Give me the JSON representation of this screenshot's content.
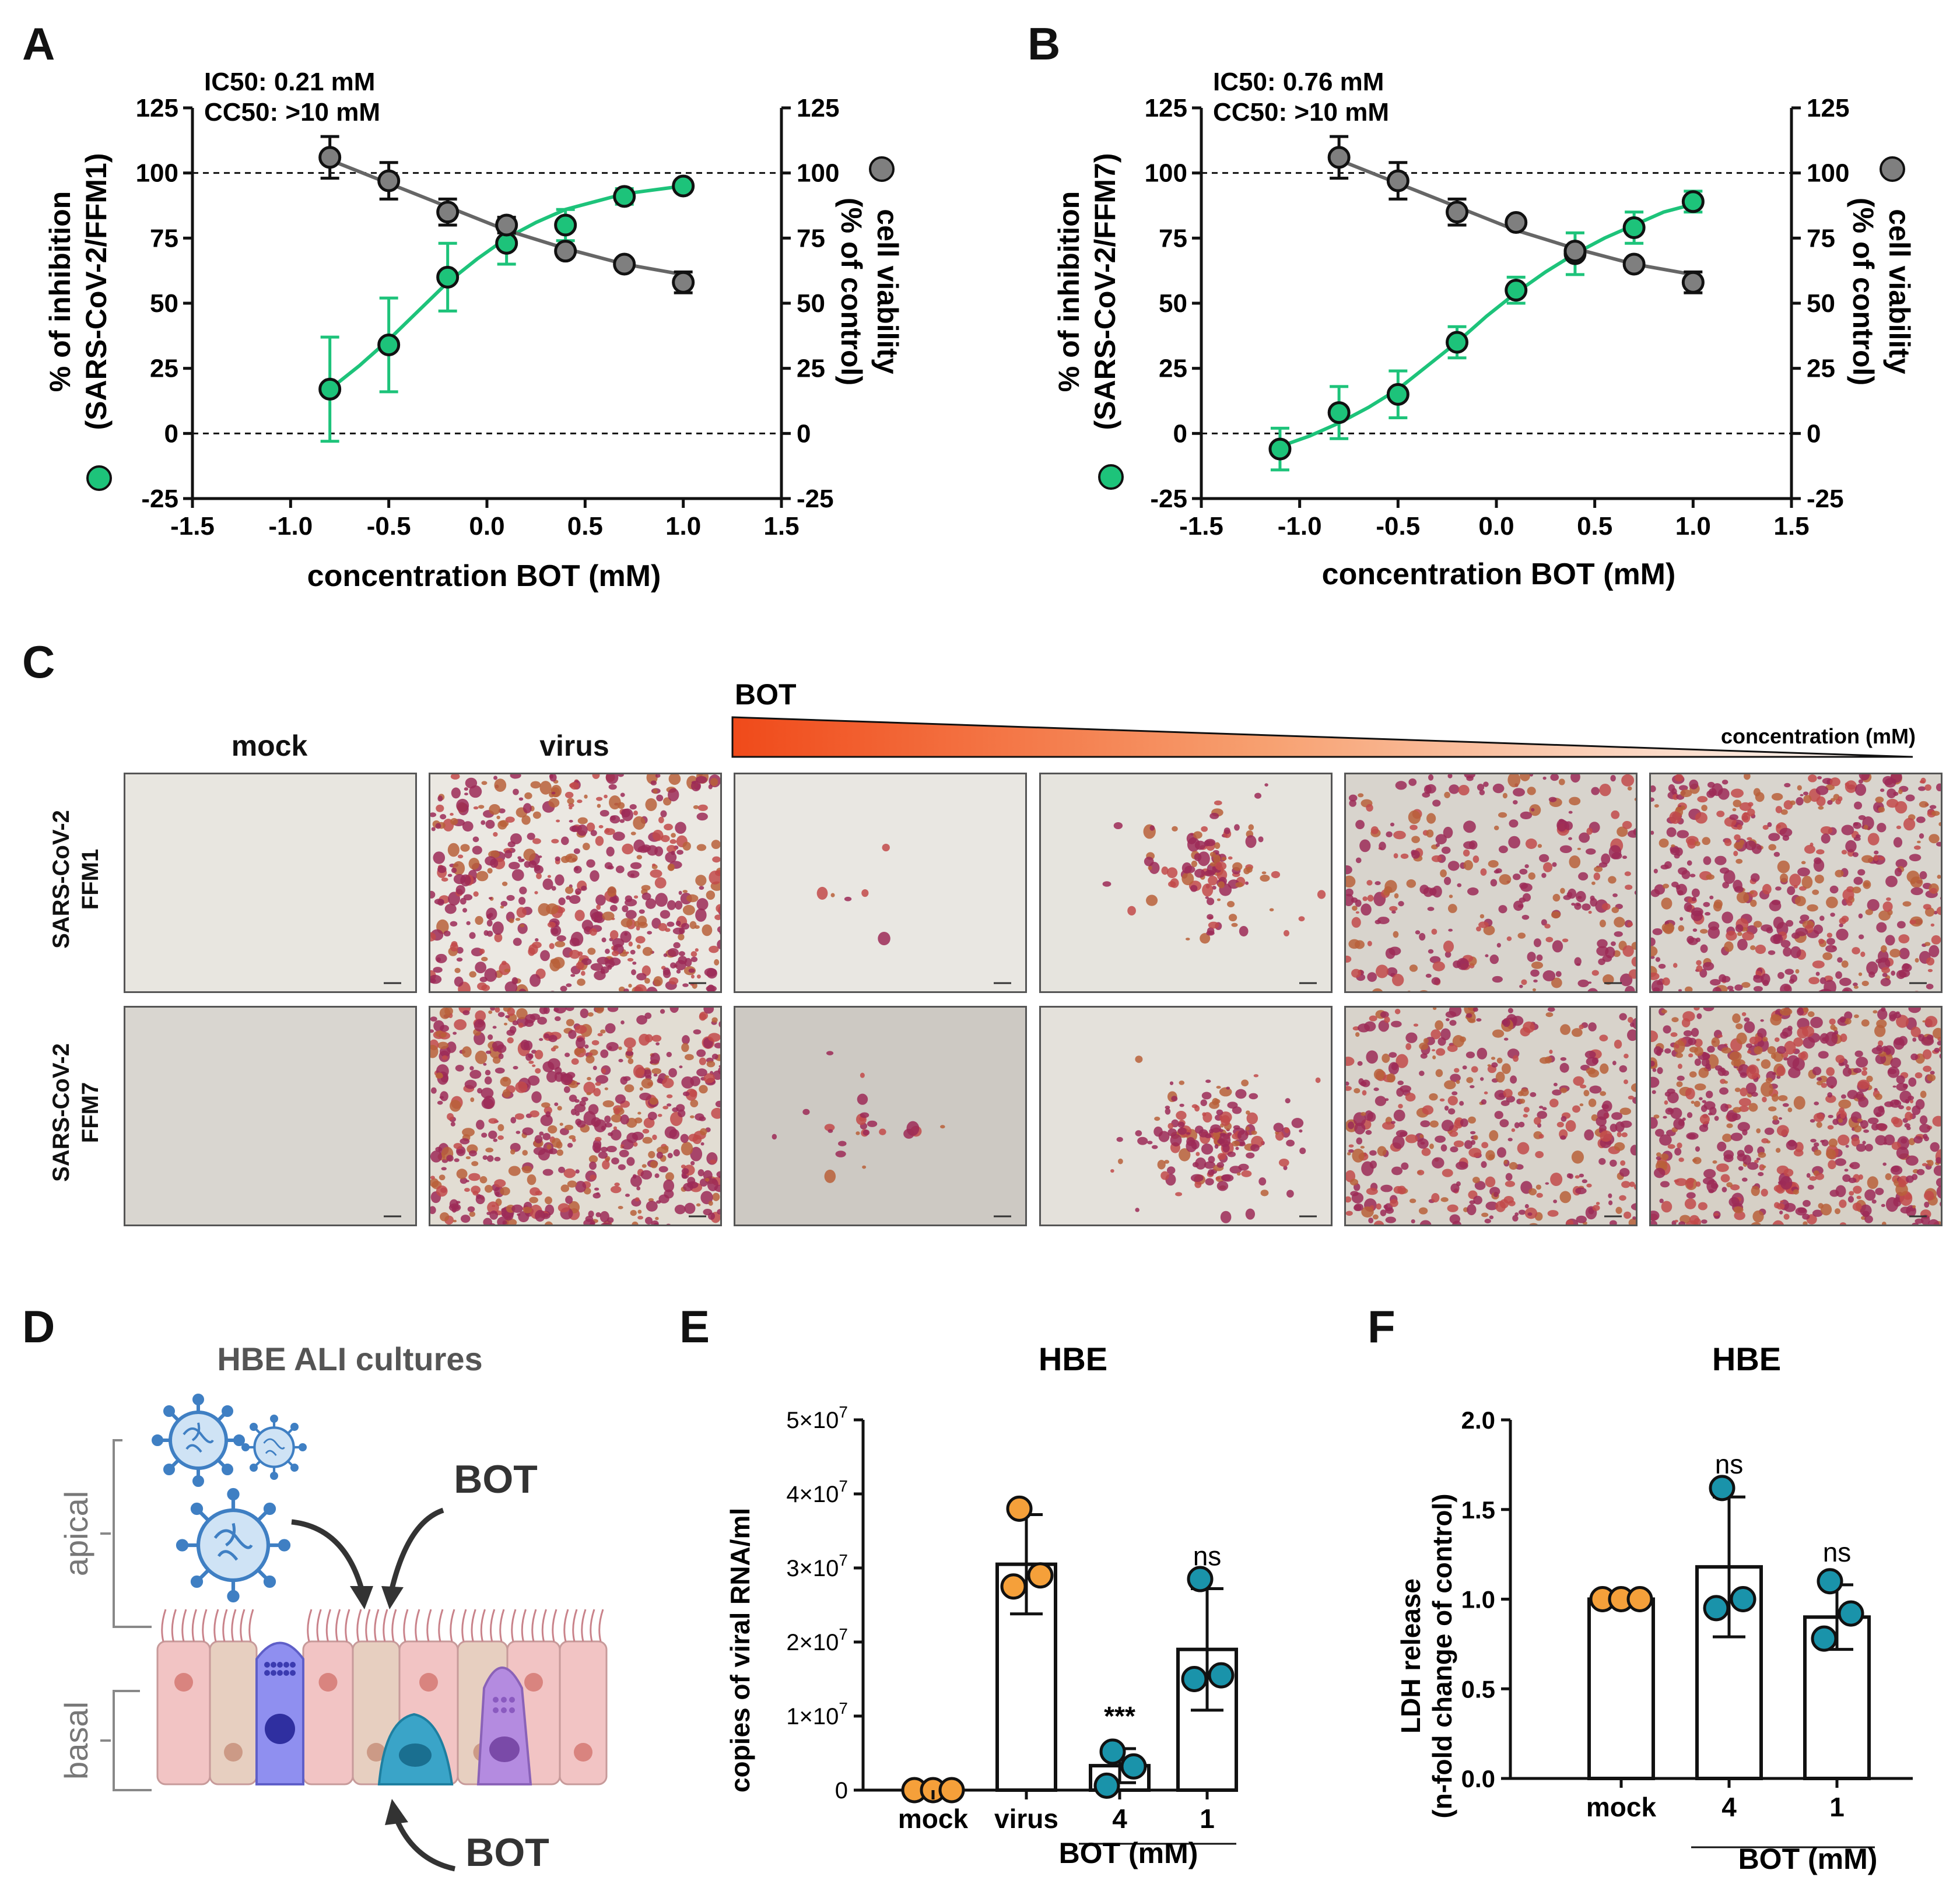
{
  "panels": {
    "A": {
      "label": "A",
      "ic50": "IC50: 0.21 mM",
      "cc50": "CC50: >10 mM",
      "ylabel_left_1": "% of inhibition",
      "ylabel_left_2": "(SARS-CoV-2/FFM1)",
      "ylabel_right_1": "cell viability",
      "ylabel_right_2": "(% of control)",
      "xlabel": "concentration BOT (mM)"
    },
    "B": {
      "label": "B",
      "ic50": "IC50: 0.76 mM",
      "cc50": "CC50: >10 mM",
      "ylabel_left_1": "% of inhibition",
      "ylabel_left_2": "(SARS-CoV-2/FFM7)",
      "ylabel_right_1": "cell viability",
      "ylabel_right_2": "(% of control)",
      "xlabel": "concentration BOT (mM)"
    },
    "C": {
      "label": "C",
      "col_mock": "mock",
      "col_virus": "virus",
      "bot_label": "BOT",
      "concentration_label": "concentration (mM)",
      "row1_line1": "SARS-CoV-2",
      "row1_line2": "FFM1",
      "row2_line1": "SARS-CoV-2",
      "row2_line2": "FFM7"
    },
    "D": {
      "label": "D",
      "title": "HBE ALI cultures",
      "apical": "apical",
      "basal": "basal",
      "bot_top": "BOT",
      "bot_bottom": "BOT"
    },
    "E": {
      "label": "E",
      "title": "HBE",
      "ylabel": "copies of viral RNA/ml",
      "sig_bot4": "***",
      "sig_bot1": "ns",
      "group_label": "BOT (mM)"
    },
    "F": {
      "label": "F",
      "title": "HBE",
      "ylabel_1": "LDH release",
      "ylabel_2": "(n-fold change of control)",
      "sig_bot4": "ns",
      "sig_bot1": "ns",
      "group_label": "BOT (mM)"
    }
  },
  "colors": {
    "inhibition": "#1dc37a",
    "viability": "#7f7f7f",
    "orange_dot": "#f5a03a",
    "teal_dot": "#1a93aa",
    "bot_gradient_start": "#f04a1a",
    "bot_gradient_end": "#ffffff"
  },
  "icons": [
    "virus-particle-icon",
    "airway-epithelium-illustration",
    "arrow-icon"
  ],
  "chart_data": [
    {
      "id": "A",
      "type": "scatter",
      "title": "",
      "xlabel": "concentration BOT (mM)",
      "ylabel": "% of inhibition (SARS-CoV-2/FFM1)",
      "y2label": "cell viability (% of control)",
      "xlim": [
        -1.5,
        1.5
      ],
      "ylim": [
        -25,
        125
      ],
      "xticks": [
        "-1.5",
        "-1.0",
        "-0.5",
        "0.0",
        "0.5",
        "1.0",
        "1.5"
      ],
      "yticks": [
        "-25",
        "0",
        "25",
        "50",
        "75",
        "100",
        "125"
      ],
      "y2ticks": [
        "-25",
        "0",
        "25",
        "50",
        "75",
        "100",
        "125"
      ],
      "reference_lines": [
        0,
        100
      ],
      "series": [
        {
          "name": "% of inhibition",
          "color_key": "inhibition",
          "x": [
            -0.8,
            -0.5,
            -0.2,
            0.1,
            0.4,
            0.7,
            1.0
          ],
          "y": [
            17,
            34,
            60,
            73,
            80,
            91,
            95
          ],
          "err": [
            20,
            18,
            13,
            8,
            6,
            3,
            2
          ],
          "fit": [
            [
              -0.8,
              17
            ],
            [
              -0.65,
              26
            ],
            [
              -0.5,
              36
            ],
            [
              -0.35,
              47
            ],
            [
              -0.2,
              58
            ],
            [
              -0.05,
              67
            ],
            [
              0.1,
              75
            ],
            [
              0.25,
              81
            ],
            [
              0.4,
              86
            ],
            [
              0.55,
              89
            ],
            [
              0.7,
              92
            ],
            [
              0.85,
              93.5
            ],
            [
              1.0,
              95
            ]
          ]
        },
        {
          "name": "cell viability",
          "color_key": "viability",
          "x": [
            -0.8,
            -0.5,
            -0.2,
            0.1,
            0.4,
            0.7,
            1.0
          ],
          "y": [
            106,
            97,
            85,
            80,
            70,
            65,
            58
          ],
          "err": [
            8,
            7,
            5,
            3,
            2,
            2,
            4
          ],
          "fit": [
            [
              -0.8,
              105
            ],
            [
              -0.5,
              96
            ],
            [
              -0.2,
              87
            ],
            [
              0.1,
              78
            ],
            [
              0.4,
              71
            ],
            [
              0.7,
              65
            ],
            [
              1.0,
              61
            ]
          ]
        }
      ]
    },
    {
      "id": "B",
      "type": "scatter",
      "title": "",
      "xlabel": "concentration BOT (mM)",
      "ylabel": "% of inhibition (SARS-CoV-2/FFM7)",
      "y2label": "cell viability (% of control)",
      "xlim": [
        -1.5,
        1.5
      ],
      "ylim": [
        -25,
        125
      ],
      "xticks": [
        "-1.5",
        "-1.0",
        "-0.5",
        "0.0",
        "0.5",
        "1.0",
        "1.5"
      ],
      "yticks": [
        "-25",
        "0",
        "25",
        "50",
        "75",
        "100",
        "125"
      ],
      "y2ticks": [
        "-25",
        "0",
        "25",
        "50",
        "75",
        "100",
        "125"
      ],
      "reference_lines": [
        0,
        100
      ],
      "series": [
        {
          "name": "% of inhibition",
          "color_key": "inhibition",
          "x": [
            -1.1,
            -0.8,
            -0.5,
            -0.2,
            0.1,
            0.4,
            0.7,
            1.0
          ],
          "y": [
            -6,
            8,
            15,
            35,
            55,
            69,
            79,
            89
          ],
          "err": [
            8,
            10,
            9,
            6,
            5,
            8,
            6,
            4
          ],
          "fit": [
            [
              -1.1,
              -5
            ],
            [
              -0.95,
              -1
            ],
            [
              -0.8,
              4
            ],
            [
              -0.65,
              10
            ],
            [
              -0.5,
              17
            ],
            [
              -0.35,
              26
            ],
            [
              -0.2,
              35
            ],
            [
              -0.05,
              45
            ],
            [
              0.1,
              54
            ],
            [
              0.25,
              62
            ],
            [
              0.4,
              69
            ],
            [
              0.55,
              75
            ],
            [
              0.7,
              80
            ],
            [
              0.85,
              85
            ],
            [
              1.0,
              88
            ]
          ]
        },
        {
          "name": "cell viability",
          "color_key": "viability",
          "x": [
            -0.8,
            -0.5,
            -0.2,
            0.1,
            0.4,
            0.7,
            1.0
          ],
          "y": [
            106,
            97,
            85,
            81,
            70,
            65,
            58
          ],
          "err": [
            8,
            7,
            5,
            2,
            2,
            2,
            4
          ],
          "fit": [
            [
              -0.8,
              105
            ],
            [
              -0.5,
              96
            ],
            [
              -0.2,
              87
            ],
            [
              0.1,
              78
            ],
            [
              0.4,
              71
            ],
            [
              0.7,
              65
            ],
            [
              1.0,
              61
            ]
          ]
        }
      ]
    },
    {
      "id": "E",
      "type": "bar",
      "title": "HBE",
      "ylabel": "copies of viral RNA/ml",
      "ylim": [
        0,
        50000000
      ],
      "yticks_mantissa": [
        "0",
        "1",
        "2",
        "3",
        "4",
        "5"
      ],
      "ytick_unit_html": "×10",
      "ytick_exp": "7",
      "categories": [
        "mock",
        "virus",
        "4",
        "1"
      ],
      "values": [
        0,
        30500000,
        3300000,
        19000000
      ],
      "err": [
        0,
        6700000,
        2300000,
        8200000
      ],
      "points": [
        [
          0,
          0,
          0
        ],
        [
          38000000,
          27500000,
          29000000
        ],
        [
          5200000,
          600000,
          3200000
        ],
        [
          28500000,
          15000000,
          15500000
        ]
      ],
      "point_color_keys": [
        "orange_dot",
        "orange_dot",
        "teal_dot",
        "teal_dot"
      ],
      "significance": [
        "",
        "",
        "***",
        "ns"
      ],
      "group_label": "BOT (mM)"
    },
    {
      "id": "F",
      "type": "bar",
      "title": "HBE",
      "ylabel": "LDH release (n-fold change of control)",
      "ylim": [
        0,
        2.0
      ],
      "yticks": [
        "0.0",
        "0.5",
        "1.0",
        "1.5",
        "2.0"
      ],
      "categories": [
        "mock",
        "4",
        "1"
      ],
      "values": [
        1.0,
        1.18,
        0.9
      ],
      "err": [
        0,
        0.39,
        0.18
      ],
      "points": [
        [
          1.0,
          1.0,
          1.0
        ],
        [
          1.62,
          0.95,
          1.0
        ],
        [
          1.1,
          0.78,
          0.92
        ]
      ],
      "point_color_keys": [
        "orange_dot",
        "teal_dot",
        "teal_dot"
      ],
      "significance": [
        "",
        "ns",
        "ns"
      ],
      "group_label": "BOT (mM)"
    }
  ]
}
